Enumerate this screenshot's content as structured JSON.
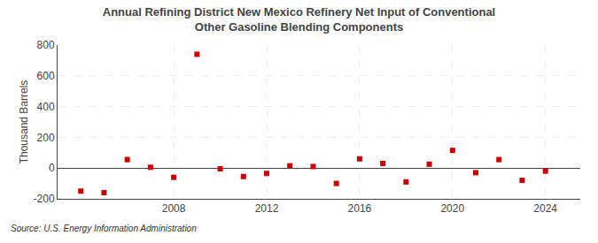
{
  "chart_data": {
    "type": "scatter",
    "title": "Annual Refining District New Mexico Refinery Net Input of Conventional Other Gasoline Blending Components",
    "ylabel": "Thousand Barrels",
    "source": "Source: U.S. Energy Information Administration",
    "x": [
      2004,
      2005,
      2006,
      2007,
      2008,
      2009,
      2010,
      2011,
      2012,
      2013,
      2014,
      2015,
      2016,
      2017,
      2018,
      2019,
      2020,
      2021,
      2022,
      2023,
      2024
    ],
    "values": [
      -150,
      -160,
      55,
      5,
      -60,
      740,
      -5,
      -55,
      -35,
      15,
      10,
      -100,
      60,
      30,
      -90,
      25,
      115,
      -30,
      55,
      -80,
      -20
    ],
    "color": "#cc0000",
    "marker": "square",
    "xlim": [
      2003,
      2025.5
    ],
    "xticks": [
      2008,
      2012,
      2016,
      2020,
      2024
    ],
    "ylim": [
      -200,
      800
    ],
    "yticks": [
      -200,
      0,
      200,
      400,
      600,
      800
    ],
    "grid": true
  }
}
